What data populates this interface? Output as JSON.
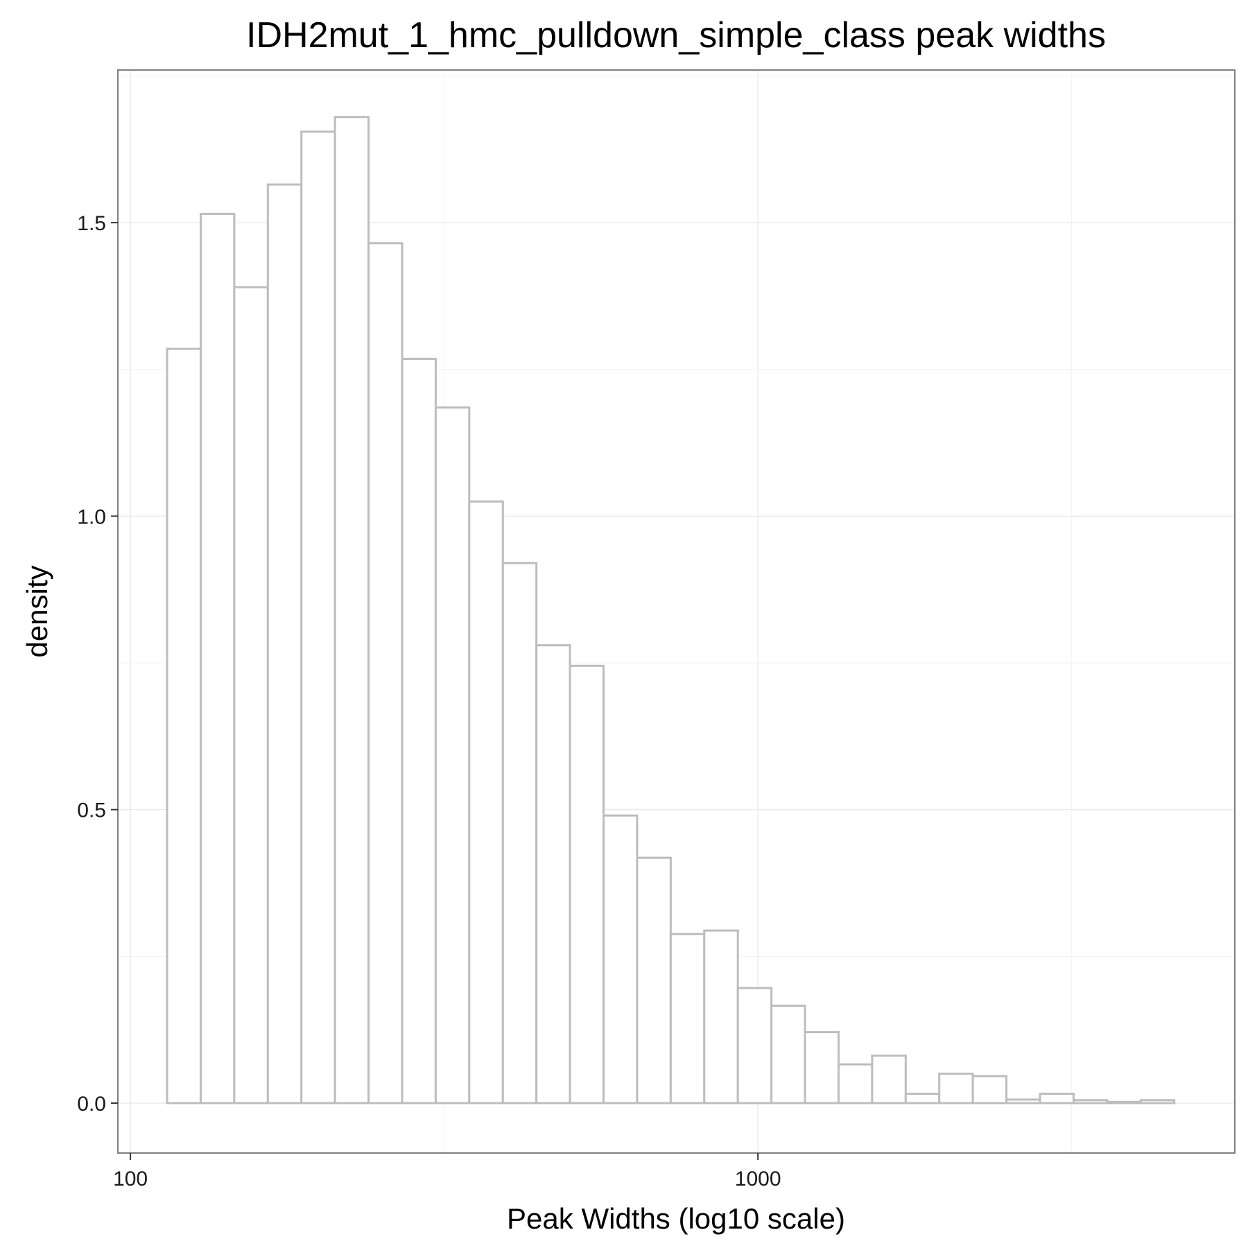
{
  "chart_data": {
    "type": "bar",
    "title": "IDH2mut_1_hmc_pulldown_simple_class peak widths",
    "xlabel": "Peak Widths (log10 scale)",
    "ylabel": "density",
    "x_scale": "log10",
    "xlim_log10": [
      1.98,
      3.76
    ],
    "ylim": [
      -0.085,
      1.76
    ],
    "x_ticks": [
      {
        "value": 100,
        "label": "100"
      },
      {
        "value": 1000,
        "label": "1000"
      }
    ],
    "y_ticks": [
      {
        "value": 0.0,
        "label": "0.0"
      },
      {
        "value": 0.5,
        "label": "0.5"
      },
      {
        "value": 1.0,
        "label": "1.0"
      },
      {
        "value": 1.5,
        "label": "1.5"
      }
    ],
    "grid": true,
    "bin_start_log10": 2.0585,
    "bin_width_log10": 0.0535,
    "values": [
      1.285,
      1.515,
      1.39,
      1.565,
      1.655,
      1.68,
      1.465,
      1.268,
      1.185,
      1.025,
      0.92,
      0.78,
      0.745,
      0.49,
      0.418,
      0.288,
      0.294,
      0.196,
      0.166,
      0.121,
      0.066,
      0.081,
      0.016,
      0.05,
      0.046,
      0.006,
      0.016,
      0.005,
      0.002,
      0.005
    ]
  }
}
